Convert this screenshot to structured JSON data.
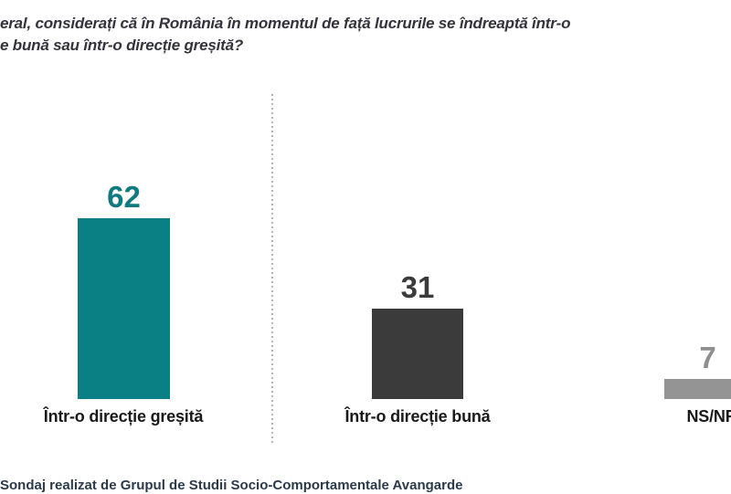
{
  "page": {
    "background": "#ffffff"
  },
  "title": {
    "line1": "eral, considerați că în România în momentul de față lucrurile se îndreaptă într-o",
    "line2": "e bună sau într-o direcție greșită?",
    "color": "#33333b"
  },
  "chart_data": {
    "type": "bar",
    "orientation": "vertical",
    "title": "",
    "xlabel": "",
    "ylabel": "",
    "ylim": [
      0,
      100
    ],
    "grid": false,
    "legend": "none",
    "pixels_per_unit": 3.2,
    "categories": [
      "Într-o direcție greșită",
      "Într-o direcție bună",
      "NS/NR"
    ],
    "values": [
      62,
      31,
      7
    ],
    "bars": [
      {
        "label": "Într-o direcție greșită",
        "value": 62,
        "bar_color": "#0b8084",
        "value_color": "#0f7a80"
      },
      {
        "label": "Într-o direcție bună",
        "value": 31,
        "bar_color": "#3b3b3b",
        "value_color": "#3b3b3b"
      },
      {
        "label": "NS/NR",
        "value": 7,
        "bar_color": "#949494",
        "value_color": "#8f8f8f"
      }
    ],
    "divider": {
      "style": "dashed-vertical",
      "color": "#b5b5b5",
      "between": [
        "Într-o direcție greșită",
        "Într-o direcție bună"
      ]
    },
    "notes_clipping": "third bar and its NS/NR label are cut off by the right edge; question text cut off at left edge"
  },
  "footer": {
    "clipped_text": "Sondaj realizat de Grupul de Studii Socio-Comportamentale Avangarde",
    "color": "#2b3a4a"
  }
}
